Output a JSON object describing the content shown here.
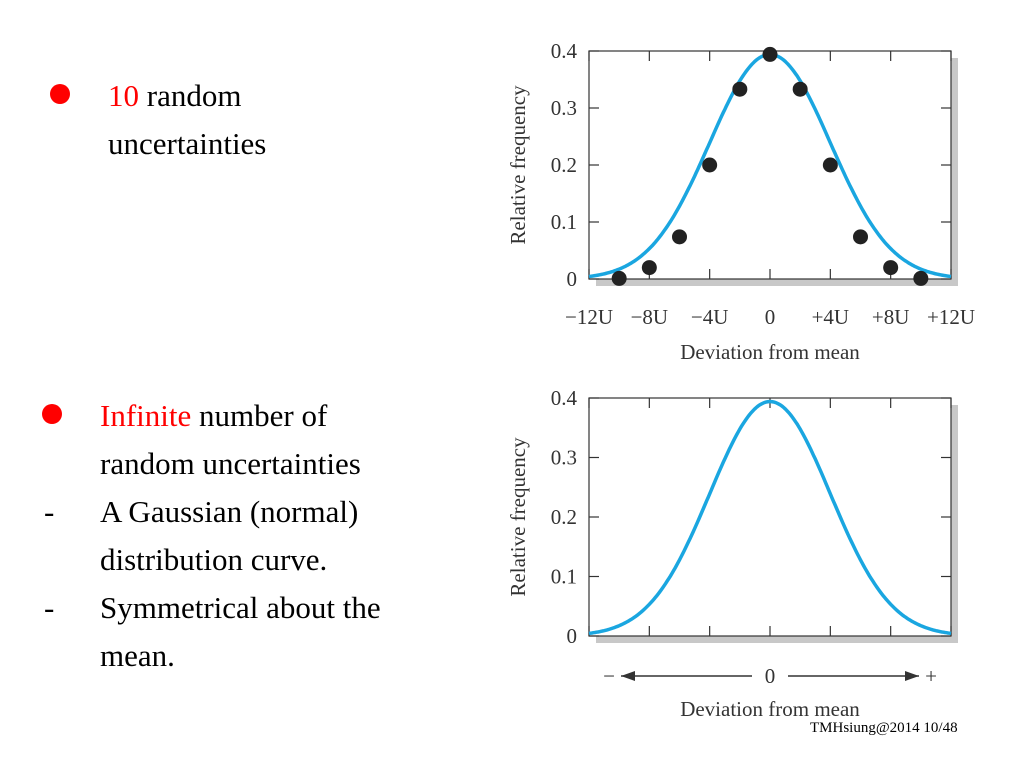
{
  "bullets": [
    {
      "lines": [
        {
          "highlight": "10",
          "rest": " random"
        },
        {
          "highlight": "",
          "rest": "uncertainties"
        }
      ]
    },
    {
      "lines": [
        {
          "highlight": "Infinite",
          "rest": " number of"
        },
        {
          "highlight": "",
          "rest": "random uncertainties"
        }
      ],
      "subitems": [
        {
          "dash": "-",
          "lines": [
            "A Gaussian (normal)",
            "distribution curve."
          ]
        },
        {
          "dash": "-",
          "lines": [
            "Symmetrical about the",
            "mean."
          ]
        }
      ]
    }
  ],
  "footer": "TMHsiung@2014 10/48",
  "colors": {
    "highlight": "#ff0000",
    "curve": "#1aa6e0",
    "points": "#222222",
    "shadow": "#c8c8c8"
  },
  "chart_data": [
    {
      "type": "line",
      "xlabel": "Deviation from mean",
      "ylabel": "Relative frequency",
      "ylim": [
        0,
        0.4
      ],
      "yticks": [
        "0",
        "0.1",
        "0.2",
        "0.3",
        "0.4"
      ],
      "xlim": [
        -12,
        12
      ],
      "xticks": [
        "−12U",
        "−8U",
        "−4U",
        "0",
        "+4U",
        "+8U",
        "+12U"
      ],
      "grid": false,
      "curve": "gaussian",
      "sigma": 4,
      "series": [
        {
          "type": "scatter",
          "x": [
            -10,
            -8,
            -6,
            -4,
            -2,
            0,
            2,
            4,
            6,
            8,
            10
          ],
          "y": [
            0.001,
            0.02,
            0.074,
            0.2,
            0.333,
            0.394,
            0.333,
            0.2,
            0.074,
            0.02,
            0.001
          ]
        }
      ]
    },
    {
      "type": "line",
      "xlabel": "Deviation from mean",
      "ylabel": "Relative frequency",
      "ylim": [
        0,
        0.4
      ],
      "yticks": [
        "0",
        "0.1",
        "0.2",
        "0.3",
        "0.4"
      ],
      "xlim": [
        -12,
        12
      ],
      "xaxis_labels": {
        "minus": "−",
        "zero": "0",
        "plus": "+"
      },
      "grid": false,
      "curve": "gaussian",
      "sigma": 4
    }
  ]
}
